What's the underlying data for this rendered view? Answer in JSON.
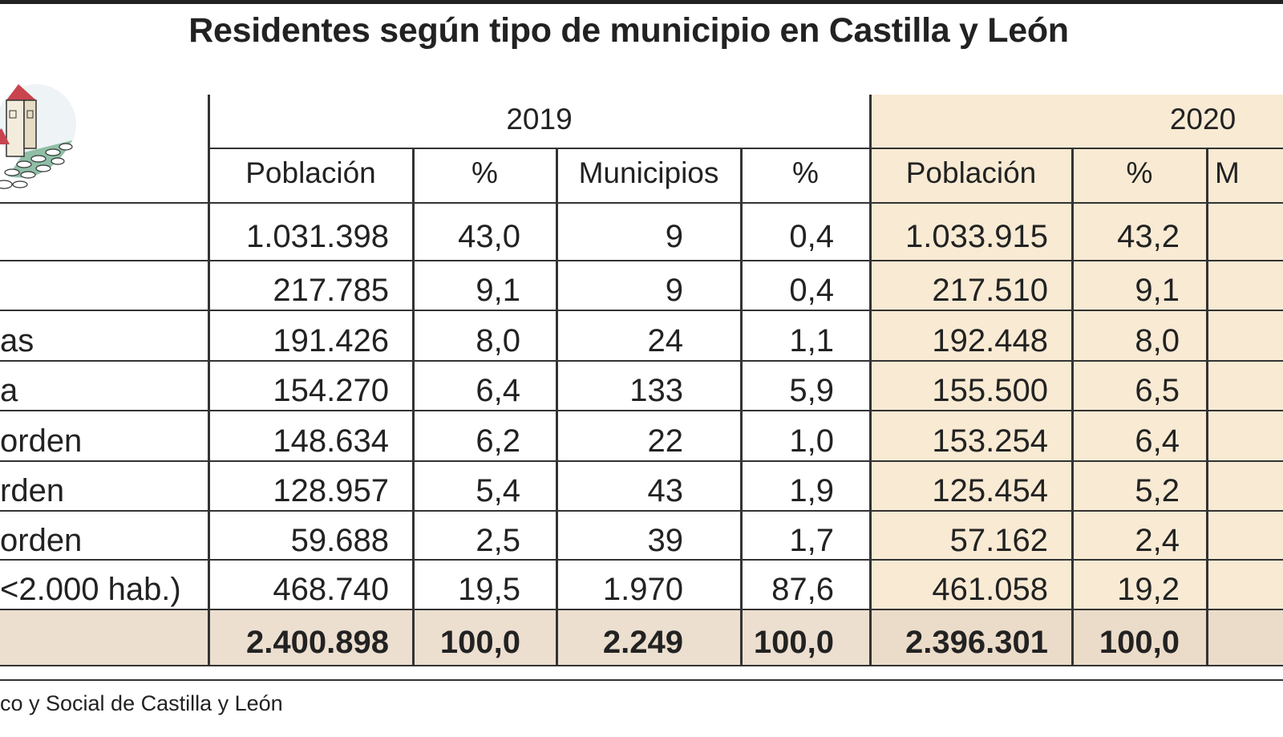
{
  "title": "Residentes según tipo de municipio en Castilla y León",
  "colors": {
    "highlight_2020": "#f8ead3",
    "total_row": "#ecdfd0",
    "rule": "#333333"
  },
  "icon": "village-tower-icon",
  "source": "co y Social de Castilla y León",
  "chart_data": {
    "type": "table",
    "title": "Residentes según tipo de municipio en Castilla y León",
    "years": [
      "2019",
      "2020"
    ],
    "columns": [
      "Población",
      "%",
      "Municipios",
      "%",
      "Población",
      "%",
      "M"
    ],
    "rows": [
      {
        "label": "",
        "values": [
          "1.031.398",
          "43,0",
          "9",
          "0,4",
          "1.033.915",
          "43,2",
          ""
        ]
      },
      {
        "label": "",
        "values": [
          "217.785",
          "9,1",
          "9",
          "0,4",
          "217.510",
          "9,1",
          ""
        ]
      },
      {
        "label": "as",
        "values": [
          "191.426",
          "8,0",
          "24",
          "1,1",
          "192.448",
          "8,0",
          ""
        ]
      },
      {
        "label": "a",
        "values": [
          "154.270",
          "6,4",
          "133",
          "5,9",
          "155.500",
          "6,5",
          ""
        ]
      },
      {
        "label": "orden",
        "values": [
          "148.634",
          "6,2",
          "22",
          "1,0",
          "153.254",
          "6,4",
          ""
        ]
      },
      {
        "label": "rden",
        "values": [
          "128.957",
          "5,4",
          "43",
          "1,9",
          "125.454",
          "5,2",
          ""
        ]
      },
      {
        "label": "orden",
        "values": [
          "59.688",
          "2,5",
          "39",
          "1,7",
          "57.162",
          "2,4",
          ""
        ]
      },
      {
        "label": "<2.000 hab.)",
        "values": [
          "468.740",
          "19,5",
          "1.970",
          "87,6",
          "461.058",
          "19,2",
          ""
        ]
      }
    ],
    "total": {
      "label": "",
      "values": [
        "2.400.898",
        "100,0",
        "2.249",
        "100,0",
        "2.396.301",
        "100,0",
        ""
      ]
    }
  }
}
